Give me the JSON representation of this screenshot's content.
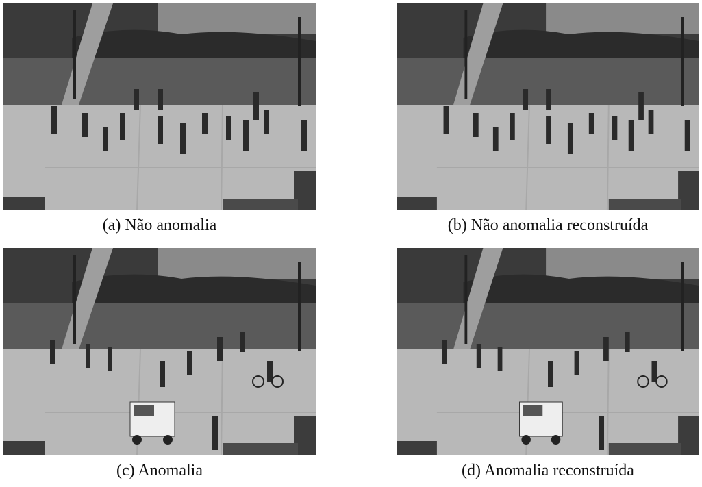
{
  "figure": {
    "panels": [
      {
        "caption": "(a) Não anomalia"
      },
      {
        "caption": "(b) Não anomalia reconstruída"
      },
      {
        "caption": "(c) Anomalia"
      },
      {
        "caption": "(d) Anomalia reconstruída"
      }
    ]
  }
}
